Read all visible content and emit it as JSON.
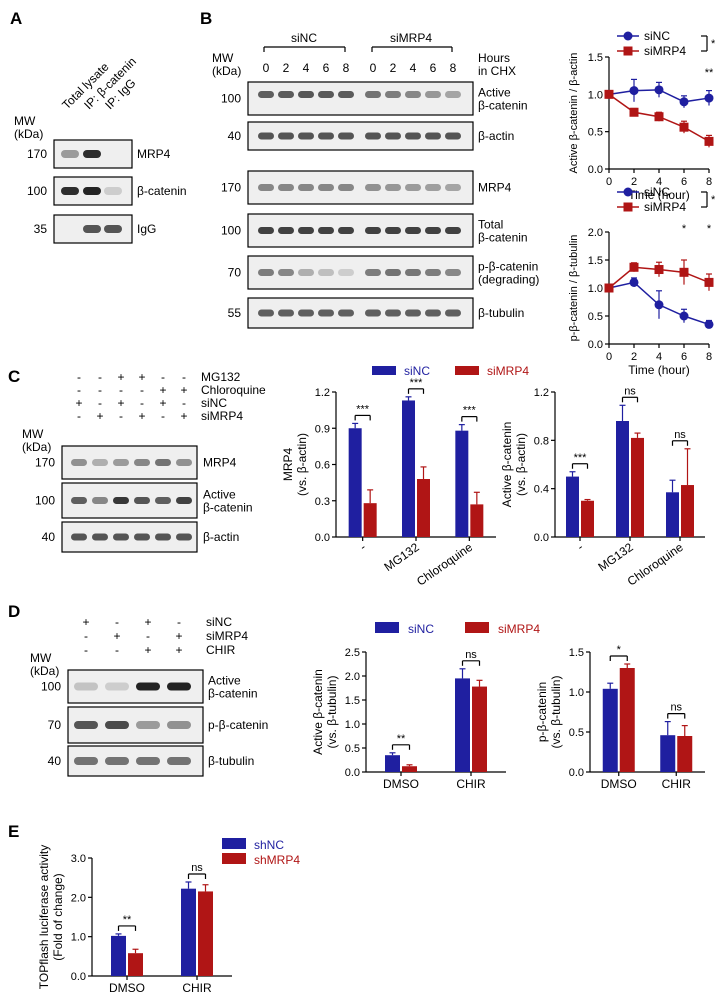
{
  "colors": {
    "siNC": "#1f1fa0",
    "siMRP4": "#b01515"
  },
  "panelA": {
    "label": "A",
    "mw_title": "MW (kDa)",
    "lanes": [
      "Total lysate",
      "IP: β-catenin",
      "IP: IgG"
    ],
    "rows": [
      {
        "mw": "170",
        "name": "MRP4"
      },
      {
        "mw": "100",
        "name": "β-catenin"
      },
      {
        "mw": "35",
        "name": "IgG"
      }
    ]
  },
  "panelB": {
    "label": "B",
    "group_left": "siNC",
    "group_right": "siMRP4",
    "mw_title": "MW (kDa)",
    "hours_title": "Hours in CHX",
    "hours": [
      "0",
      "2",
      "4",
      "6",
      "8"
    ],
    "rows": [
      {
        "mw": "100",
        "name": "Active β-catenin"
      },
      {
        "mw": "40",
        "name": "β-actin"
      },
      {
        "mw": "170",
        "name": "MRP4"
      },
      {
        "mw": "100",
        "name": "Total β-catenin"
      },
      {
        "mw": "70",
        "name": "p-β-catenin (degrading)"
      },
      {
        "mw": "55",
        "name": "β-tubulin"
      }
    ]
  },
  "panelC": {
    "label": "C",
    "mw_title": "MW (kDa)",
    "treat_rows": [
      {
        "name": "MG132",
        "signs": [
          "-",
          "-",
          "+",
          "+",
          "-",
          "-"
        ]
      },
      {
        "name": "Chloroquine",
        "signs": [
          "-",
          "-",
          "-",
          "-",
          "+",
          "+"
        ]
      },
      {
        "name": "siNC",
        "signs": [
          "+",
          "-",
          "+",
          "-",
          "+",
          "-"
        ]
      },
      {
        "name": "siMRP4",
        "signs": [
          "-",
          "+",
          "-",
          "+",
          "-",
          "+"
        ]
      }
    ],
    "rows": [
      {
        "mw": "170",
        "name": "MRP4"
      },
      {
        "mw": "100",
        "name": "Active β-catenin"
      },
      {
        "mw": "40",
        "name": "β-actin"
      }
    ]
  },
  "panelD": {
    "label": "D",
    "mw_title": "MW (kDa)",
    "treat_rows": [
      {
        "name": "siNC",
        "signs": [
          "+",
          "-",
          "+",
          "-"
        ]
      },
      {
        "name": "siMRP4",
        "signs": [
          "-",
          "+",
          "-",
          "+"
        ]
      },
      {
        "name": "CHIR",
        "signs": [
          "-",
          "-",
          "+",
          "+"
        ]
      }
    ],
    "rows": [
      {
        "mw": "100",
        "name": "Active β-catenin"
      },
      {
        "mw": "70",
        "name": "p-β-catenin"
      },
      {
        "mw": "40",
        "name": "β-tubulin"
      }
    ]
  },
  "panelE": {
    "label": "E"
  },
  "chart_data": [
    {
      "id": "B_top",
      "type": "line",
      "x": [
        0,
        2,
        4,
        6,
        8
      ],
      "xlabel": "Time (hour)",
      "ylabel": "Active β-catenin / β-actin",
      "xlim": [
        0,
        8
      ],
      "ylim": [
        0,
        1.5
      ],
      "series": [
        {
          "name": "siNC",
          "values": [
            1.0,
            1.05,
            1.06,
            0.9,
            0.95
          ],
          "err": [
            0.05,
            0.15,
            0.1,
            0.08,
            0.1
          ]
        },
        {
          "name": "siMRP4",
          "values": [
            1.0,
            0.76,
            0.7,
            0.56,
            0.37
          ],
          "err": [
            0.04,
            0.05,
            0.06,
            0.08,
            0.08
          ]
        }
      ],
      "point_annotations": [
        {
          "x": 8,
          "text": "**"
        }
      ],
      "bracket_text": "***"
    },
    {
      "id": "B_bottom",
      "type": "line",
      "x": [
        0,
        2,
        4,
        6,
        8
      ],
      "xlabel": "Time (hour)",
      "ylabel": "p-β-catenin / β-tubulin",
      "xlim": [
        0,
        8
      ],
      "ylim": [
        0,
        2.0
      ],
      "series": [
        {
          "name": "siNC",
          "values": [
            1.0,
            1.1,
            0.7,
            0.5,
            0.35
          ],
          "err": [
            0.05,
            0.08,
            0.25,
            0.12,
            0.07
          ]
        },
        {
          "name": "siMRP4",
          "values": [
            1.0,
            1.37,
            1.33,
            1.28,
            1.1
          ],
          "err": [
            0.04,
            0.08,
            0.13,
            0.22,
            0.15
          ]
        }
      ],
      "point_annotations": [
        {
          "x": 6,
          "text": "*"
        },
        {
          "x": 8,
          "text": "*"
        }
      ],
      "bracket_text": "**"
    },
    {
      "id": "C_MRP4",
      "type": "bar",
      "categories": [
        "-",
        "MG132",
        "Chloroquine"
      ],
      "ylabel": "MRP4 (vs. β-actin)",
      "ylim": [
        0,
        1.2
      ],
      "series": [
        {
          "name": "siNC",
          "values": [
            0.9,
            1.13,
            0.88
          ],
          "err": [
            0.04,
            0.03,
            0.05
          ]
        },
        {
          "name": "siMRP4",
          "values": [
            0.28,
            0.48,
            0.27
          ],
          "err": [
            0.11,
            0.1,
            0.1
          ]
        }
      ],
      "sig": [
        "***",
        "***",
        "***"
      ]
    },
    {
      "id": "C_active",
      "type": "bar",
      "categories": [
        "-",
        "MG132",
        "Chloroquine"
      ],
      "ylabel": "Active β-catenin (vs. β-actin)",
      "ylim": [
        0,
        1.2
      ],
      "series": [
        {
          "name": "siNC",
          "values": [
            0.5,
            0.96,
            0.37
          ],
          "err": [
            0.04,
            0.13,
            0.1
          ]
        },
        {
          "name": "siMRP4",
          "values": [
            0.3,
            0.82,
            0.43
          ],
          "err": [
            0.01,
            0.04,
            0.3
          ]
        }
      ],
      "sig": [
        "***",
        "ns",
        "ns"
      ]
    },
    {
      "id": "D_active",
      "type": "bar",
      "categories": [
        "DMSO",
        "CHIR"
      ],
      "ylabel": "Active β-catenin (vs. β-tubulin)",
      "ylim": [
        0,
        2.5
      ],
      "series": [
        {
          "name": "siNC",
          "values": [
            0.35,
            1.95
          ],
          "err": [
            0.05,
            0.2
          ]
        },
        {
          "name": "siMRP4",
          "values": [
            0.12,
            1.78
          ],
          "err": [
            0.03,
            0.13
          ]
        }
      ],
      "sig": [
        "**",
        "ns"
      ]
    },
    {
      "id": "D_p",
      "type": "bar",
      "categories": [
        "DMSO",
        "CHIR"
      ],
      "ylabel": "p-β-catenin (vs. β-tubulin)",
      "ylim": [
        0,
        1.5
      ],
      "series": [
        {
          "name": "siNC",
          "values": [
            1.04,
            0.46
          ],
          "err": [
            0.07,
            0.17
          ]
        },
        {
          "name": "siMRP4",
          "values": [
            1.3,
            0.45
          ],
          "err": [
            0.05,
            0.13
          ]
        }
      ],
      "sig": [
        "*",
        "ns"
      ]
    },
    {
      "id": "E_top",
      "type": "bar",
      "categories": [
        "DMSO",
        "CHIR"
      ],
      "ylabel": "TOPflash luciferase activity (Fold of change)",
      "ylim": [
        0,
        3
      ],
      "series": [
        {
          "name": "shNC",
          "values": [
            1.02,
            2.22
          ],
          "err": [
            0.05,
            0.17
          ]
        },
        {
          "name": "shMRP4",
          "values": [
            0.58,
            2.15
          ],
          "err": [
            0.1,
            0.17
          ]
        }
      ],
      "sig": [
        "**",
        "ns"
      ]
    }
  ]
}
